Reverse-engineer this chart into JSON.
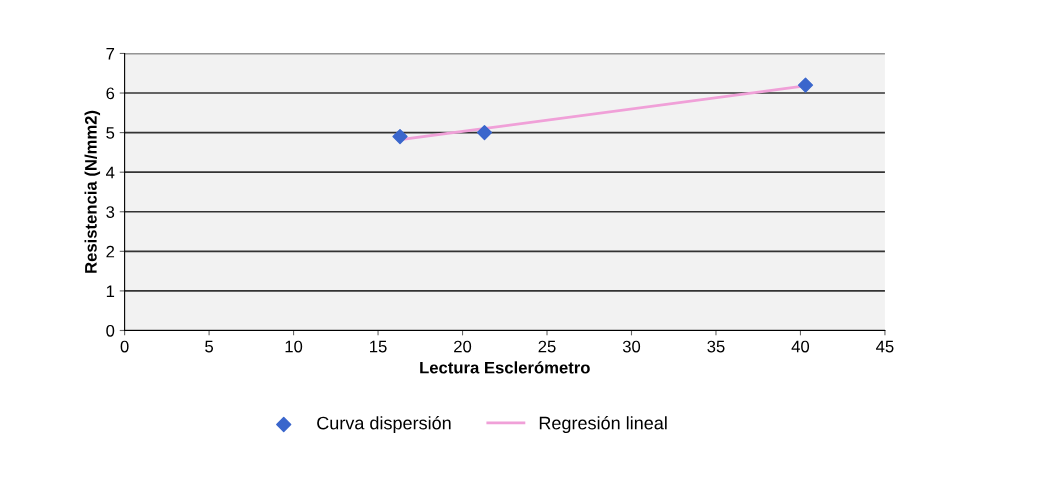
{
  "chart_data": {
    "type": "scatter",
    "xlabel": "Lectura Esclerómetro",
    "ylabel": "Resistencia (N/mm2)",
    "xlim": [
      0,
      45
    ],
    "xticks": [
      0,
      5,
      10,
      15,
      20,
      25,
      30,
      35,
      40,
      45
    ],
    "ylim": [
      0,
      7
    ],
    "yticks": [
      0,
      1,
      2,
      3,
      4,
      5,
      6,
      7
    ],
    "grid": "y",
    "legend": "bottom",
    "series": [
      {
        "name": "Curva dispersión",
        "marker": "diamond",
        "color": "#3a66cc",
        "x": [
          16.3,
          21.3,
          40.3
        ],
        "values": [
          4.9,
          5.0,
          6.2
        ]
      },
      {
        "name": "Regresión lineal",
        "type": "line",
        "marker": "none",
        "line_style": "solid",
        "color": "#f0a0d8",
        "x": [
          16.3,
          40.3
        ],
        "values": [
          4.82,
          6.18
        ]
      }
    ]
  }
}
